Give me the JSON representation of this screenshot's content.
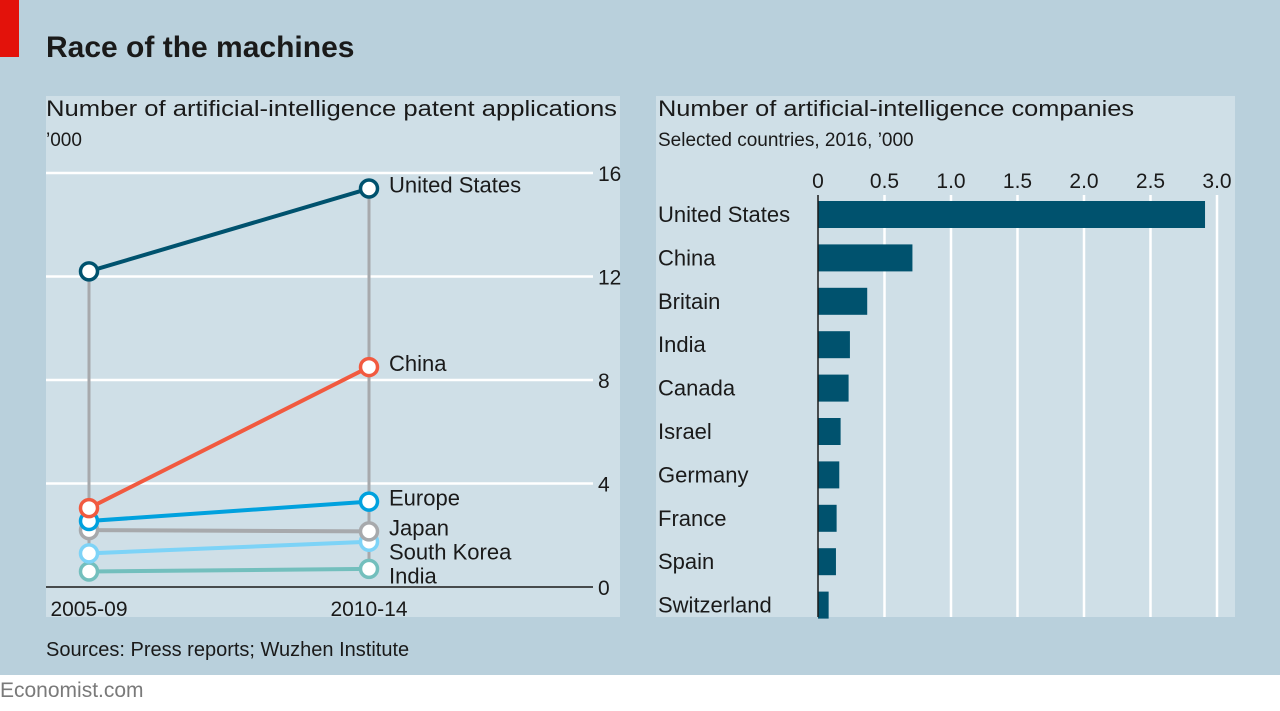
{
  "title": "Race of the machines",
  "source": "Sources: Press reports; Wuzhen Institute",
  "brand": "Economist.com",
  "colors": {
    "background": "#b9d0dc",
    "panel": "#cfdfe7",
    "accent_red": "#e3120b",
    "bar": "#00526e",
    "connector": "#a7a9ac"
  },
  "chart_data": [
    {
      "type": "line",
      "title": "Number of artificial-intelligence patent applications",
      "subtitle": "’000",
      "categories": [
        "2005-09",
        "2010-14"
      ],
      "ylim": [
        0,
        16
      ],
      "yticks": [
        "0",
        "4",
        "8",
        "12",
        "16"
      ],
      "ytick_values": [
        0,
        4,
        8,
        12,
        16
      ],
      "grid": true,
      "series": [
        {
          "name": "United States",
          "values": [
            12.2,
            15.4
          ],
          "color": "#00526e"
        },
        {
          "name": "China",
          "values": [
            3.05,
            8.5
          ],
          "color": "#f15a40"
        },
        {
          "name": "Europe",
          "values": [
            2.55,
            3.3
          ],
          "color": "#00a1de"
        },
        {
          "name": "Japan",
          "values": [
            2.2,
            2.15
          ],
          "color": "#a7a9ac"
        },
        {
          "name": "South Korea",
          "values": [
            1.3,
            1.75
          ],
          "color": "#7dd3f7"
        },
        {
          "name": "India",
          "values": [
            0.6,
            0.7
          ],
          "color": "#73bfbd"
        }
      ]
    },
    {
      "type": "bar",
      "orientation": "horizontal",
      "title": "Number of artificial-intelligence companies",
      "subtitle": "Selected countries, 2016, ’000",
      "categories": [
        "United States",
        "China",
        "Britain",
        "India",
        "Canada",
        "Israel",
        "Germany",
        "France",
        "Spain",
        "Switzerland"
      ],
      "values": [
        2.91,
        0.71,
        0.37,
        0.24,
        0.23,
        0.17,
        0.16,
        0.14,
        0.135,
        0.08
      ],
      "xlim": [
        0,
        3.0
      ],
      "xticks": [
        "0",
        "0.5",
        "1.0",
        "1.5",
        "2.0",
        "2.5",
        "3.0"
      ],
      "xtick_values": [
        0,
        0.5,
        1.0,
        1.5,
        2.0,
        2.5,
        3.0
      ],
      "grid": true
    }
  ]
}
